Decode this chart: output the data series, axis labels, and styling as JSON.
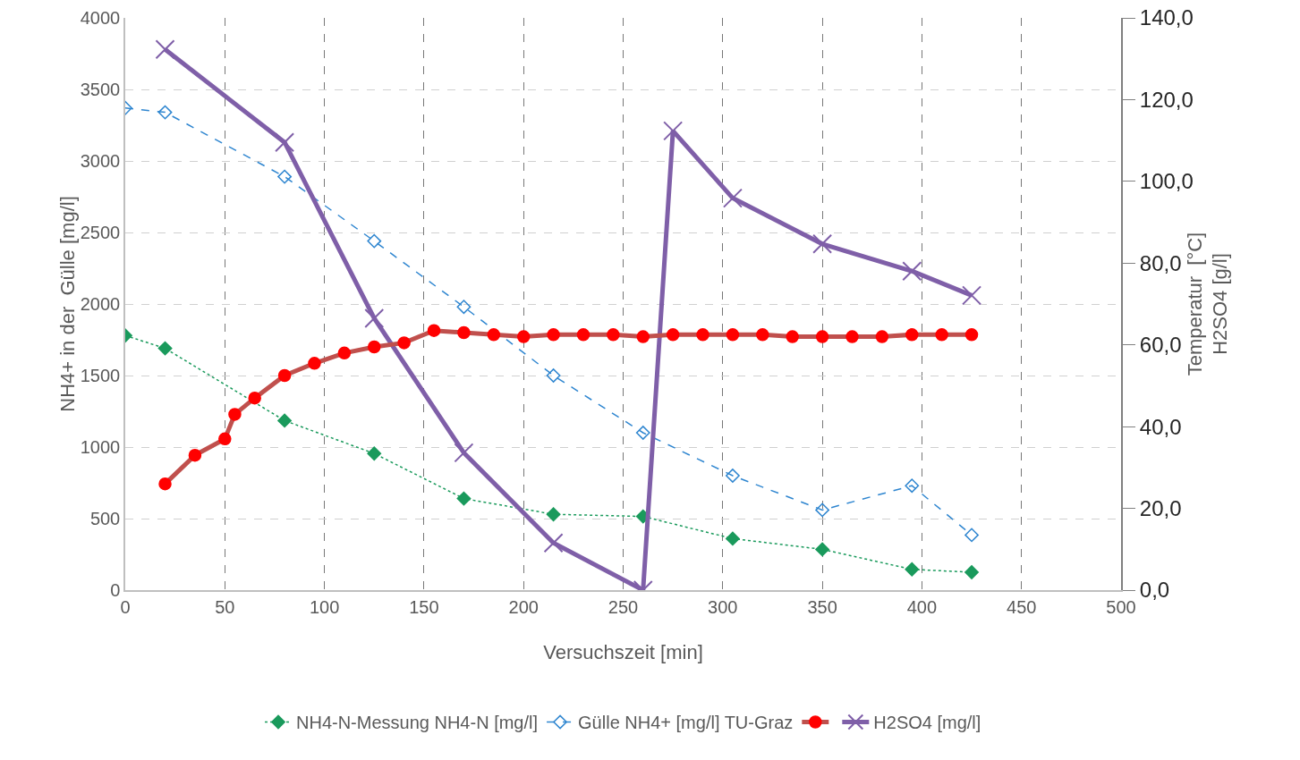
{
  "chart_data": {
    "type": "line",
    "xlabel": "Versuchszeit [min]",
    "ylabel": "NH4+ in der  Gülle [mg/l]",
    "y2label": "Temperatur  [°C]\nH2SO4 [g/l]",
    "xlim": [
      0,
      500
    ],
    "xticks": [
      0,
      50,
      100,
      150,
      200,
      250,
      300,
      350,
      400,
      450,
      500
    ],
    "ylim": [
      0,
      4000
    ],
    "yticks": [
      0,
      500,
      1000,
      1500,
      2000,
      2500,
      3000,
      3500,
      4000
    ],
    "y2lim": [
      0,
      140
    ],
    "y2ticks": [
      {
        "value": 0,
        "label": "0,0"
      },
      {
        "value": 20,
        "label": "20,0"
      },
      {
        "value": 40,
        "label": "40,0"
      },
      {
        "value": 60,
        "label": "60,0"
      },
      {
        "value": 80,
        "label": "80,0"
      },
      {
        "value": 100,
        "label": "100,0"
      },
      {
        "value": 120,
        "label": "120,0"
      },
      {
        "value": 140,
        "label": "140,0"
      }
    ],
    "grid": true,
    "legend": "bottom",
    "series": [
      {
        "name": "NH4-N-Messung NH4-N [mg/l]",
        "color": "#1a9a5c",
        "marker": "diamond",
        "line_style": "dotted",
        "x": [
          0,
          20,
          80,
          125,
          170,
          215,
          260,
          305,
          350,
          395,
          425
        ],
        "values": [
          1780,
          1690,
          1185,
          955,
          640,
          530,
          515,
          360,
          285,
          145,
          125
        ]
      },
      {
        "name": "Gülle NH4+ [mg/l] TU-Graz",
        "color": "#2f86d0",
        "marker": "diamond",
        "line_style": "dashed",
        "x": [
          0,
          20,
          80,
          125,
          170,
          215,
          260,
          305,
          350,
          395,
          425
        ],
        "values": [
          3370,
          3340,
          2890,
          2440,
          1980,
          1500,
          1100,
          800,
          560,
          730,
          385
        ]
      },
      {
        "color": "#c0504d",
        "marker": "circle",
        "line_style": "solid",
        "axis": "y2",
        "x": [
          20,
          35,
          50,
          55,
          65,
          80,
          95,
          110,
          125,
          140,
          155,
          170,
          185,
          200,
          215,
          230,
          245,
          260,
          275,
          290,
          305,
          320,
          335,
          350,
          365,
          380,
          395,
          410,
          425
        ],
        "values": [
          26,
          33,
          37,
          43,
          47,
          52.5,
          55.5,
          58,
          59.5,
          60.5,
          63.5,
          63,
          62.5,
          62,
          62.5,
          62.5,
          62.5,
          62,
          62.5,
          62.5,
          62.5,
          62.5,
          62,
          62,
          62,
          62,
          62.5,
          62.5,
          62.5
        ]
      },
      {
        "name": "H2SO4 [mg/l]",
        "color": "#7f5fa8",
        "marker": "cross",
        "line_style": "solid",
        "x": [
          20,
          80,
          125,
          170,
          215,
          260,
          275,
          305,
          350,
          395,
          425
        ],
        "values": [
          3780,
          3130,
          1900,
          960,
          330,
          0,
          3210,
          2740,
          2420,
          2230,
          2060
        ]
      }
    ]
  }
}
